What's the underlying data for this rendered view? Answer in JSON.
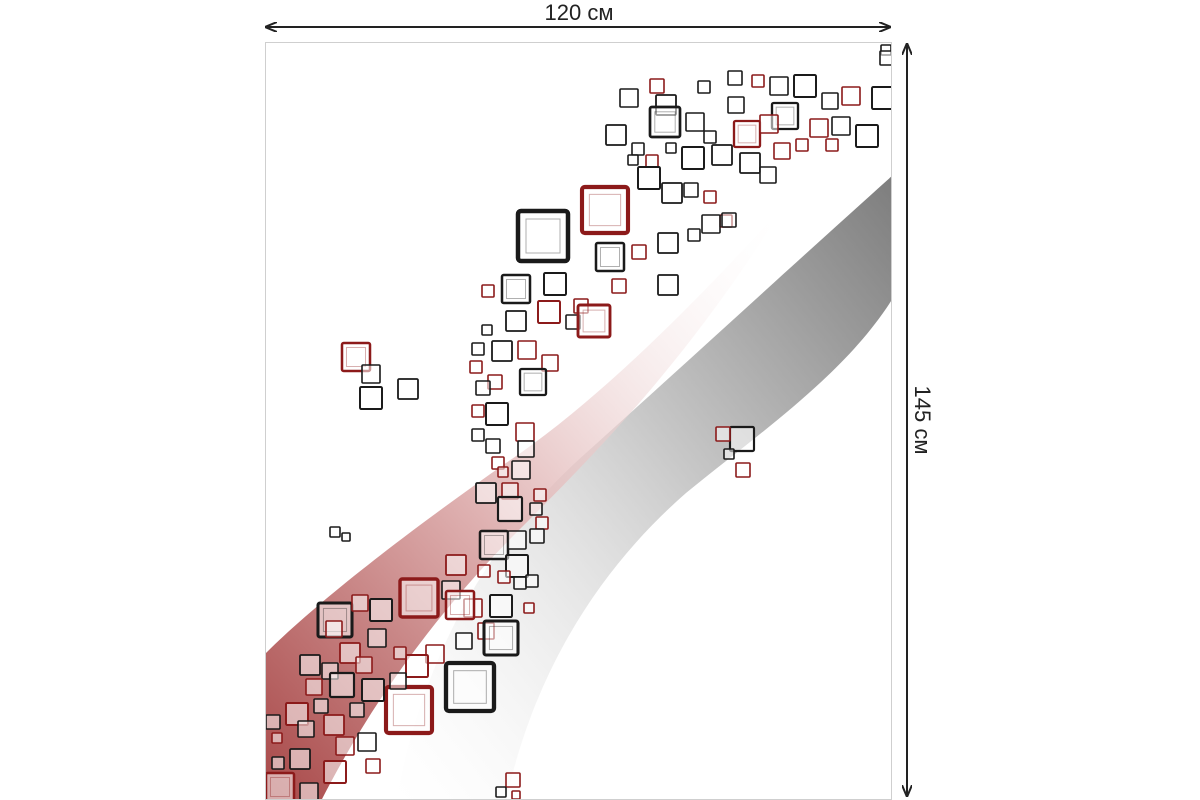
{
  "dimensions": {
    "width_label": "120 см",
    "height_label": "145 см"
  },
  "colors": {
    "dark_red": "#8c1a1a",
    "black": "#1a1a1a",
    "gray_band": "#8a8a8a",
    "red_band": "#b55a5a",
    "arrow": "#222222",
    "frame_border": "#cfcfcf"
  }
}
